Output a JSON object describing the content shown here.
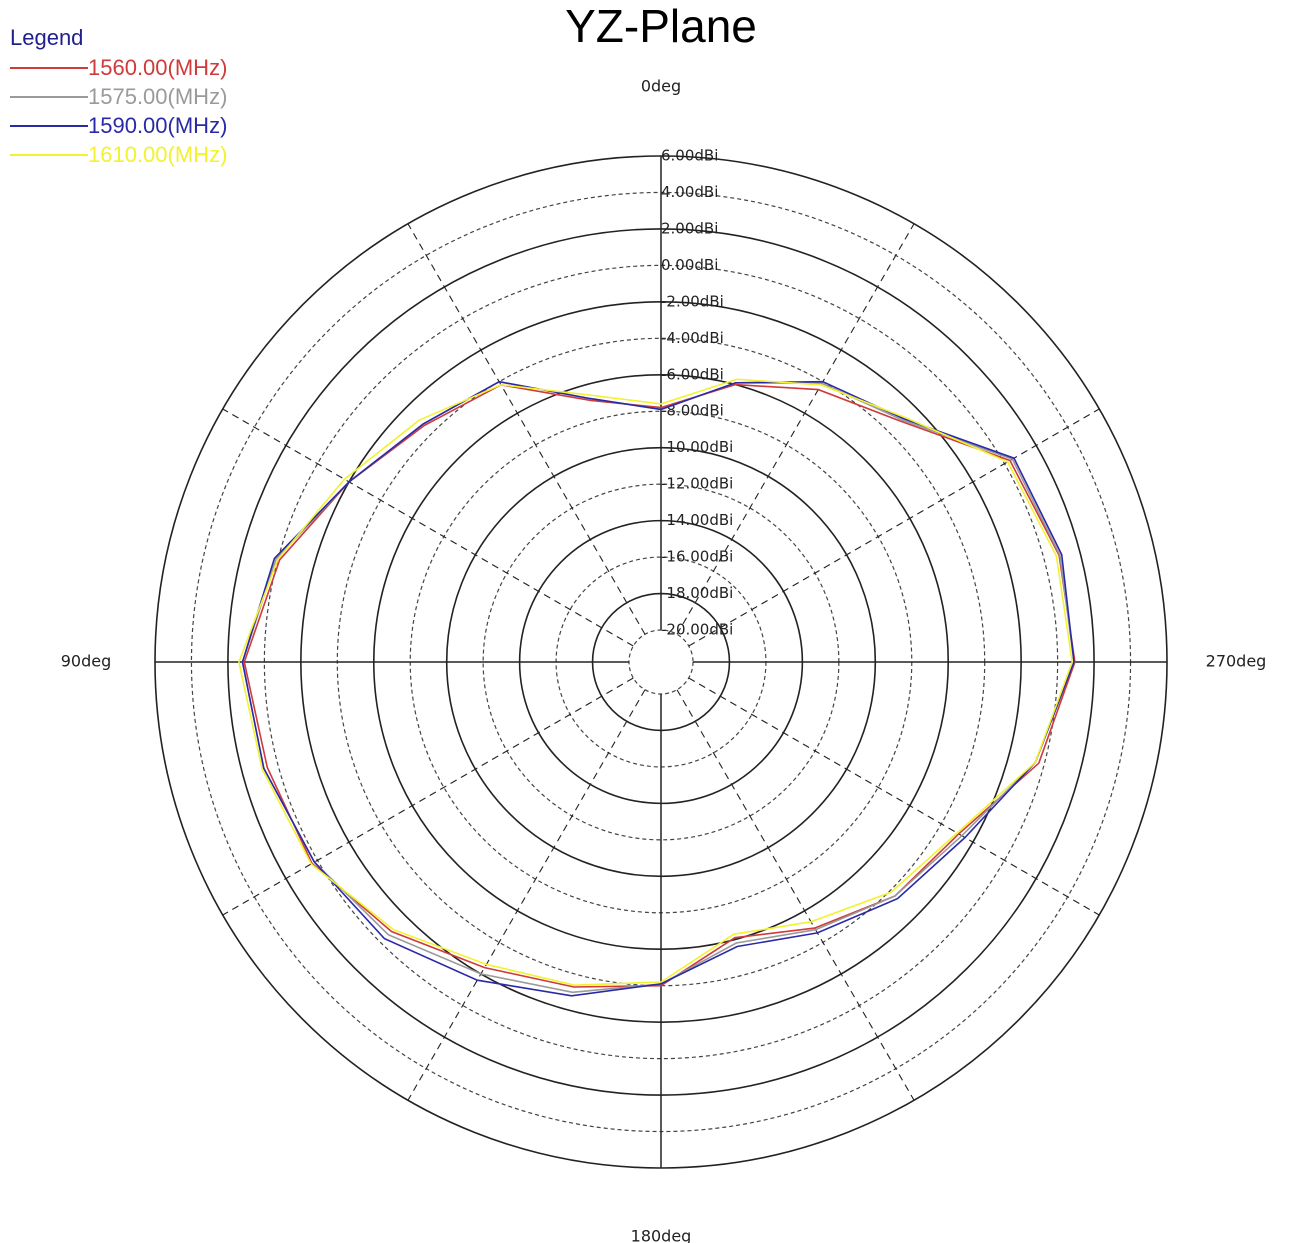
{
  "chart_data": {
    "type": "polar",
    "title": "YZ-Plane",
    "legend_title": "Legend",
    "legend": "top-left",
    "theta": [
      0,
      15,
      30,
      45,
      60,
      75,
      90,
      105,
      120,
      135,
      150,
      165,
      180,
      195,
      210,
      225,
      240,
      255,
      270,
      285,
      300,
      315,
      330,
      345
    ],
    "series": [
      {
        "name": "1560.00(MHz)",
        "color": "#d03a3a",
        "values": [
          -7.8,
          -6.9,
          -4.2,
          -3.4,
          -2.0,
          -0.1,
          1.1,
          0.6,
          0.35,
          -0.85,
          -2.4,
          -3.3,
          -4.0,
          -6.1,
          -4.9,
          -3.6,
          -2.9,
          -0.3,
          0.95,
          0.85,
          0.35,
          -3.1,
          -4.5,
          -6.0
        ]
      },
      {
        "name": "1575.00(MHz)",
        "color": "#9a9a9a",
        "values": [
          -7.9,
          -6.8,
          -4.0,
          -3.3,
          -2.0,
          0.1,
          1.2,
          0.8,
          0.2,
          -0.6,
          -2.0,
          -3.0,
          -4.1,
          -5.8,
          -4.8,
          -3.6,
          -2.7,
          -0.5,
          0.9,
          0.9,
          0.5,
          -3.0,
          -4.1,
          -5.9
        ]
      },
      {
        "name": "1590.00(MHz)",
        "color": "#2a2aa8",
        "values": [
          -7.9,
          -6.8,
          -4.0,
          -3.3,
          -2.0,
          0.2,
          1.2,
          0.8,
          0.2,
          -0.3,
          -1.6,
          -2.8,
          -4.1,
          -5.6,
          -4.6,
          -3.4,
          -2.5,
          -0.5,
          0.9,
          1.0,
          0.6,
          -2.9,
          -4.0,
          -5.9
        ]
      },
      {
        "name": "1610.00(MHz)",
        "color": "#f2f230",
        "values": [
          -7.6,
          -6.6,
          -4.2,
          -3.0,
          -1.7,
          0.0,
          1.4,
          0.9,
          0.4,
          -1.0,
          -2.6,
          -3.4,
          -4.2,
          -6.3,
          -5.3,
          -3.9,
          -3.0,
          -0.5,
          0.8,
          0.7,
          0.2,
          -2.8,
          -4.2,
          -5.7
        ]
      }
    ],
    "rlim": [
      -20,
      6
    ],
    "rticks": [
      {
        "value": 6,
        "label": "6.00dBi"
      },
      {
        "value": 4,
        "label": "4.00dBi"
      },
      {
        "value": 2,
        "label": "2.00dBi"
      },
      {
        "value": 0,
        "label": "0.00dBi"
      },
      {
        "value": -2,
        "label": "-2.00dBi"
      },
      {
        "value": -4,
        "label": "-4.00dBi"
      },
      {
        "value": -6,
        "label": "-6.00dBi"
      },
      {
        "value": -8,
        "label": "-8.00dBi"
      },
      {
        "value": -10,
        "label": "-10.00dBi"
      },
      {
        "value": -12,
        "label": "-12.00dBi"
      },
      {
        "value": -14,
        "label": "-14.00dBi"
      },
      {
        "value": -16,
        "label": "-16.00dBi"
      },
      {
        "value": -18,
        "label": "-18.00dBi"
      },
      {
        "value": -20,
        "label": "-20.00dBi"
      }
    ],
    "thetaticks": [
      {
        "value": 0,
        "label": "0deg"
      },
      {
        "value": 30,
        "label": null
      },
      {
        "value": 60,
        "label": null
      },
      {
        "value": 90,
        "label": "90deg"
      },
      {
        "value": 120,
        "label": null
      },
      {
        "value": 150,
        "label": null
      },
      {
        "value": 180,
        "label": "180deg"
      },
      {
        "value": 210,
        "label": null
      },
      {
        "value": 240,
        "label": null
      },
      {
        "value": 270,
        "label": "270deg"
      },
      {
        "value": 300,
        "label": null
      },
      {
        "value": 330,
        "label": null
      }
    ]
  }
}
